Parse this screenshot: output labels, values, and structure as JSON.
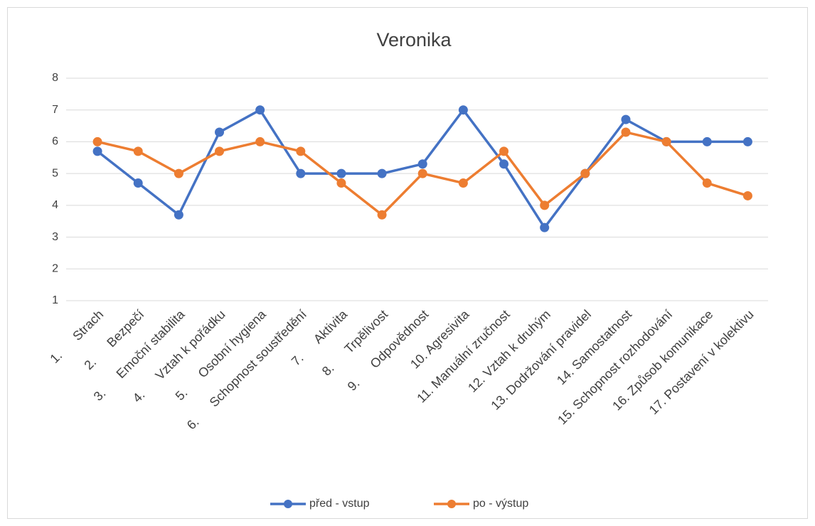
{
  "chart_data": {
    "type": "line",
    "title": "Veronika",
    "categories": [
      "1.      Strach",
      "2.      Bezpečí",
      "3.      Emoční stabilita",
      "4.      Vztah k pořádku",
      "5.      Osobní hygiena",
      "6.      Schopnost soustředění",
      "7.      Aktivita",
      "8.      Trpělivost",
      "9.      Odpovědnost",
      "10. Agresivita",
      "11. Manuální zručnost",
      "12. Vztah k druhým",
      "13. Dodržování pravidel",
      "14. Samostatnost",
      "15. Schopnost rozhodování",
      "16. Způsob komunikace",
      "17. Postavení v kolektivu"
    ],
    "series": [
      {
        "name": "před - vstup",
        "color": "#4472c4",
        "values": [
          5.7,
          4.7,
          3.7,
          6.3,
          7,
          5,
          5,
          5,
          5.3,
          7,
          5.3,
          3.3,
          5,
          6.7,
          6,
          6,
          6
        ]
      },
      {
        "name": "po - výstup",
        "color": "#ed7d31",
        "values": [
          6,
          5.7,
          5,
          5.7,
          6,
          5.7,
          4.7,
          3.7,
          5,
          4.7,
          5.7,
          4,
          5,
          6.3,
          6,
          4.7,
          4.3
        ]
      }
    ],
    "ylim": [
      1,
      8
    ],
    "yticks": [
      1,
      2,
      3,
      4,
      5,
      6,
      7,
      8
    ],
    "grid": true,
    "legend": "bottom"
  }
}
